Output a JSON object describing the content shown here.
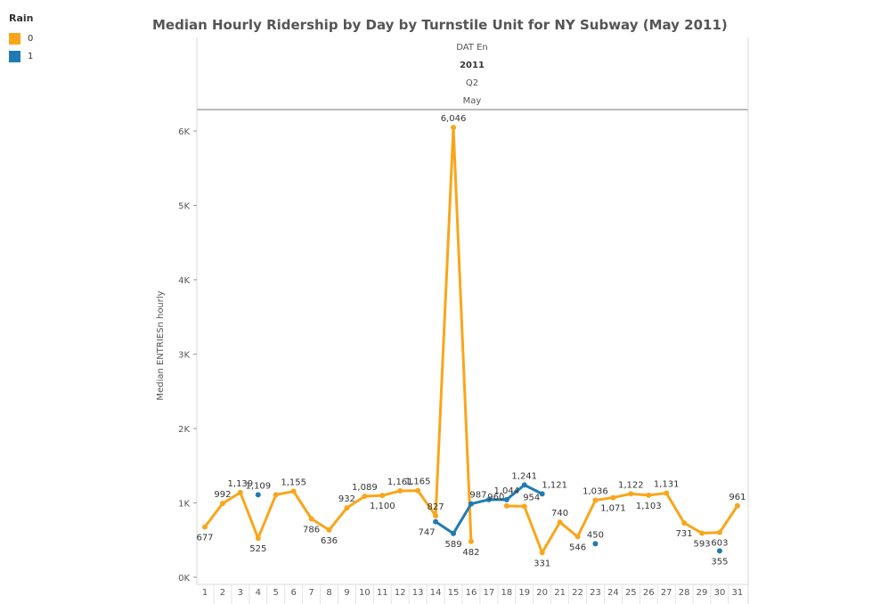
{
  "title": "Median Hourly Ridership by Day by Turnstile Unit for NY Subway (May 2011)",
  "legend": {
    "title": "Rain",
    "items": [
      {
        "label": "0",
        "color": "#f9a61a"
      },
      {
        "label": "1",
        "color": "#1f7bb4"
      }
    ]
  },
  "header": {
    "field": "DAT En",
    "year": "2011",
    "quarter": "Q2",
    "month": "May"
  },
  "chart_data": {
    "type": "line",
    "title": "Median Hourly Ridership by Day by Turnstile Unit for NY Subway (May 2011)",
    "xlabel": "",
    "ylabel": "Median ENTRIESn hourly",
    "ylim": [
      0,
      6400
    ],
    "yticks": [
      0,
      1000,
      2000,
      3000,
      4000,
      5000,
      6000
    ],
    "ytick_labels": [
      "0K",
      "1K",
      "2K",
      "3K",
      "4K",
      "5K",
      "6K"
    ],
    "categories": [
      "1",
      "2",
      "3",
      "4",
      "5",
      "6",
      "7",
      "8",
      "9",
      "10",
      "11",
      "12",
      "13",
      "14",
      "15",
      "16",
      "17",
      "18",
      "19",
      "20",
      "21",
      "22",
      "23",
      "24",
      "25",
      "26",
      "27",
      "28",
      "29",
      "30",
      "31"
    ],
    "legend_position": "top-left",
    "series": [
      {
        "name": "0",
        "color": "#f9a61a",
        "values": [
          677,
          992,
          1139,
          525,
          1109,
          1155,
          786,
          636,
          932,
          1089,
          1100,
          1161,
          1165,
          827,
          6046,
          482,
          null,
          960,
          954,
          331,
          740,
          546,
          1036,
          1071,
          1122,
          1103,
          1131,
          731,
          593,
          603,
          961
        ],
        "labels": [
          "677",
          "992",
          "1,139",
          "525",
          "",
          "1,155",
          "786",
          "636",
          "932",
          "1,089",
          "1,100",
          "1,161",
          "1,165",
          "827",
          "6,046",
          "482",
          "",
          "960",
          "954",
          "331",
          "740",
          "546",
          "1,036",
          "1,071",
          "1,122",
          "1,103",
          "1,131",
          "731",
          "593",
          "603",
          "961"
        ]
      },
      {
        "name": "1",
        "color": "#1f7bb4",
        "values": [
          null,
          null,
          null,
          1109,
          null,
          null,
          null,
          null,
          null,
          null,
          null,
          null,
          null,
          747,
          589,
          987,
          1044,
          1044,
          1241,
          1121,
          null,
          null,
          450,
          null,
          null,
          null,
          null,
          null,
          null,
          355,
          null
        ],
        "labels": [
          "",
          "",
          "",
          "1,109",
          "",
          "",
          "",
          "",
          "",
          "",
          "",
          "",
          "",
          "747",
          "589",
          "987",
          "",
          "1,044",
          "1,241",
          "1,121",
          "",
          "",
          "450",
          "",
          "",
          "",
          "",
          "",
          "",
          "355",
          ""
        ]
      }
    ]
  }
}
